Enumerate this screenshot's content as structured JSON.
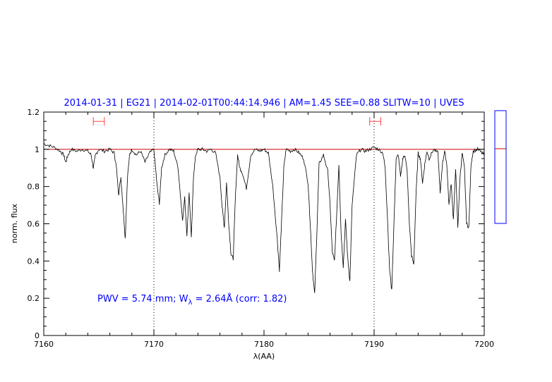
{
  "chart_data": {
    "type": "line",
    "title": "2014-01-31 | EG21 | 2014-02-01T00:44:14.946 | AM=1.45 SEE=0.88 SLITW=10 | UVES",
    "xlabel": "λ(AA)",
    "ylabel": "norm. flux",
    "xlim": [
      7160,
      7200
    ],
    "ylim": [
      0,
      1.2
    ],
    "x_ticks": [
      "7160",
      "7170",
      "7180",
      "7190",
      "7200"
    ],
    "y_ticks": [
      "0",
      "0.2",
      "0.4",
      "0.6",
      "0.8",
      "1",
      "1.2"
    ],
    "continuum_level": 1.0,
    "vertical_markers": [
      7170,
      7190
    ],
    "annotation": {
      "pwv_text": "PWV = 5.74 mm; W",
      "subscript": "λ",
      "eq_text": " = 2.64Å (corr: 1.82)"
    },
    "intervals": [
      {
        "from": 7164.5,
        "to": 7165.5,
        "level": 1.15
      },
      {
        "from": 7189.6,
        "to": 7190.6,
        "level": 1.15
      }
    ],
    "series": [
      {
        "x": [
          7160.0,
          7160.5,
          7161.0,
          7161.5,
          7161.8,
          7162.0,
          7162.2,
          7162.5,
          7163.0,
          7163.5,
          7164.0,
          7164.3,
          7164.5,
          7164.7,
          7165.0,
          7165.5,
          7166.0,
          7166.4,
          7166.6,
          7166.8,
          7167.0,
          7167.2,
          7167.4,
          7167.6,
          7167.8,
          7168.0,
          7168.4,
          7168.8,
          7169.2,
          7169.6,
          7170.0,
          7170.3,
          7170.5,
          7170.7,
          7171.0,
          7171.4,
          7171.8,
          7172.2,
          7172.6,
          7172.8,
          7173.0,
          7173.2,
          7173.4,
          7173.6,
          7173.8,
          7174.0,
          7174.4,
          7174.8,
          7175.2,
          7175.6,
          7176.0,
          7176.2,
          7176.4,
          7176.6,
          7176.8,
          7177.0,
          7177.2,
          7177.4,
          7177.6,
          7177.8,
          7178.0,
          7178.4,
          7178.8,
          7179.2,
          7179.6,
          7180.0,
          7180.4,
          7180.8,
          7181.2,
          7181.4,
          7181.6,
          7181.8,
          7182.0,
          7182.4,
          7182.8,
          7183.2,
          7183.6,
          7184.0,
          7184.2,
          7184.4,
          7184.6,
          7184.8,
          7185.0,
          7185.4,
          7185.8,
          7186.0,
          7186.2,
          7186.4,
          7186.6,
          7186.8,
          7187.0,
          7187.2,
          7187.4,
          7187.6,
          7187.8,
          7188.0,
          7188.4,
          7188.8,
          7189.2,
          7189.6,
          7190.0,
          7190.4,
          7190.8,
          7191.0,
          7191.2,
          7191.4,
          7191.6,
          7191.8,
          7192.0,
          7192.2,
          7192.4,
          7192.6,
          7192.8,
          7193.0,
          7193.2,
          7193.4,
          7193.6,
          7193.8,
          7194.0,
          7194.2,
          7194.4,
          7194.6,
          7194.8,
          7195.0,
          7195.4,
          7195.8,
          7196.0,
          7196.2,
          7196.4,
          7196.6,
          7196.8,
          7197.0,
          7197.2,
          7197.4,
          7197.6,
          7197.8,
          7198.0,
          7198.2,
          7198.4,
          7198.6,
          7198.8,
          7199.0,
          7199.4,
          7199.8,
          7200.0
        ],
        "y": [
          1.03,
          1.02,
          1.01,
          0.99,
          0.97,
          0.93,
          0.97,
          1.0,
          0.99,
          1.0,
          0.99,
          0.97,
          0.9,
          0.97,
          1.0,
          0.99,
          1.0,
          0.98,
          0.9,
          0.76,
          0.85,
          0.69,
          0.52,
          0.85,
          0.97,
          1.0,
          0.97,
          0.99,
          0.93,
          0.98,
          1.0,
          0.8,
          0.71,
          0.9,
          0.97,
          1.0,
          0.99,
          0.9,
          0.62,
          0.74,
          0.54,
          0.77,
          0.52,
          0.86,
          0.97,
          1.0,
          1.0,
          0.99,
          1.0,
          0.98,
          0.85,
          0.69,
          0.58,
          0.82,
          0.6,
          0.44,
          0.41,
          0.74,
          0.97,
          0.9,
          0.88,
          0.79,
          0.97,
          1.0,
          0.99,
          1.0,
          0.98,
          0.8,
          0.52,
          0.35,
          0.62,
          0.9,
          1.0,
          0.99,
          1.0,
          0.98,
          0.95,
          0.82,
          0.6,
          0.35,
          0.22,
          0.55,
          0.92,
          0.97,
          0.88,
          0.7,
          0.45,
          0.4,
          0.65,
          0.92,
          0.55,
          0.37,
          0.62,
          0.42,
          0.29,
          0.7,
          0.97,
          1.0,
          0.99,
          1.0,
          1.01,
          1.0,
          0.98,
          0.9,
          0.65,
          0.36,
          0.24,
          0.6,
          0.95,
          0.97,
          0.85,
          0.95,
          0.97,
          0.88,
          0.6,
          0.43,
          0.38,
          0.75,
          0.98,
          0.95,
          0.82,
          0.92,
          0.99,
          0.95,
          1.0,
          0.98,
          0.76,
          0.92,
          0.99,
          0.92,
          0.7,
          0.82,
          0.62,
          0.9,
          0.58,
          0.85,
          0.98,
          0.9,
          0.6,
          0.58,
          0.92,
          0.99,
          1.0,
          0.98,
          0.97
        ]
      }
    ]
  }
}
